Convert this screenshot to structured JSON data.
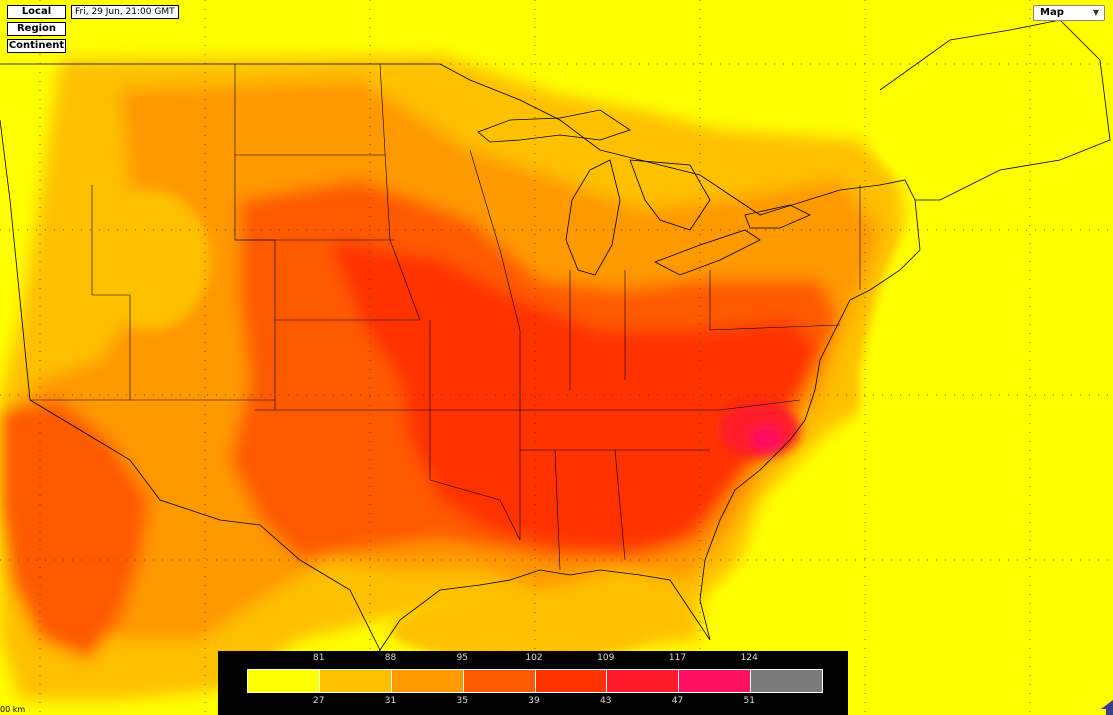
{
  "controls": {
    "local_label": "Local",
    "region_label": "Region",
    "continent_label": "Continent",
    "timestamp": "Fri, 29 Jun, 21:00 GMT",
    "map_select_label": "Map"
  },
  "legend": {
    "top_labels": [
      "81",
      "88",
      "95",
      "102",
      "109",
      "117",
      "124"
    ],
    "bottom_labels": [
      "27",
      "31",
      "35",
      "39",
      "43",
      "47",
      "51"
    ],
    "colors": [
      "#ffff00",
      "#ffc000",
      "#ff9900",
      "#ff5a00",
      "#ff3300",
      "#ff1a2a",
      "#ff1060",
      "#7a7a7a"
    ]
  },
  "map": {
    "background_color": "#ffff00",
    "scale_label": "00 km"
  },
  "icons": {
    "nav_arrow": "navigate-arrow-icon"
  }
}
